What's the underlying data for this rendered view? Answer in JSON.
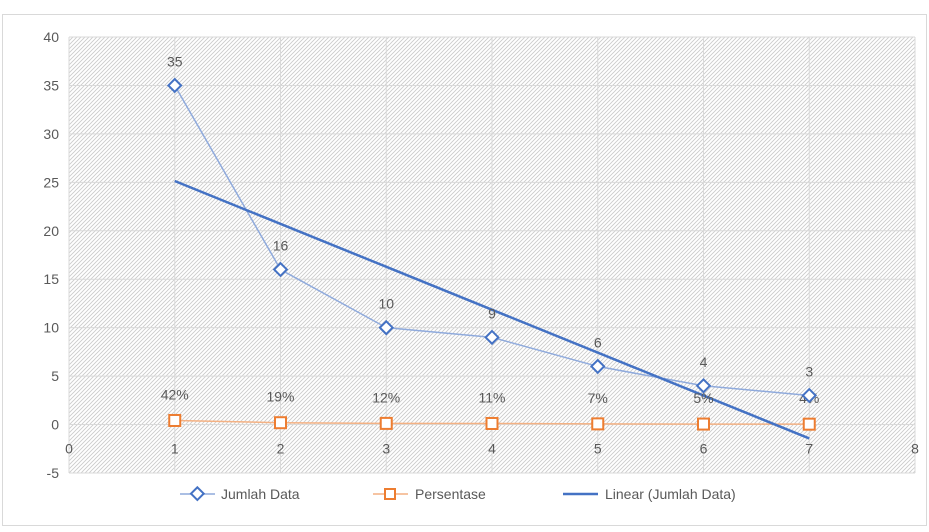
{
  "chart_data": {
    "type": "scatter",
    "xlim": [
      0,
      8
    ],
    "ylim": [
      -5,
      40
    ],
    "x_ticks": [
      "0",
      "1",
      "2",
      "3",
      "4",
      "5",
      "6",
      "7",
      "8"
    ],
    "y_ticks": [
      "-5",
      "0",
      "5",
      "10",
      "15",
      "20",
      "25",
      "30",
      "35",
      "40"
    ],
    "grid": true,
    "legend_position": "bottom",
    "series": [
      {
        "name": "Jumlah Data",
        "marker": "diamond",
        "color": "#8faadc",
        "x": [
          1,
          2,
          3,
          4,
          5,
          6,
          7
        ],
        "y": [
          35,
          16,
          10,
          9,
          6,
          4,
          3
        ],
        "labels": [
          "35",
          "16",
          "10",
          "9",
          "6",
          "4",
          "3"
        ]
      },
      {
        "name": "Persentase",
        "marker": "square",
        "color": "#ed7d31",
        "x": [
          1,
          2,
          3,
          4,
          5,
          6,
          7
        ],
        "y": [
          0.42,
          0.19,
          0.12,
          0.11,
          0.07,
          0.05,
          0.04
        ],
        "labels": [
          "42%",
          "19%",
          "12%",
          "11%",
          "7%",
          "5%",
          "4%"
        ]
      },
      {
        "name": "Linear (Jumlah Data)",
        "type": "trendline",
        "color": "#4472c4",
        "x": [
          1,
          7
        ],
        "y": [
          25.14,
          -1.43
        ]
      }
    ]
  }
}
